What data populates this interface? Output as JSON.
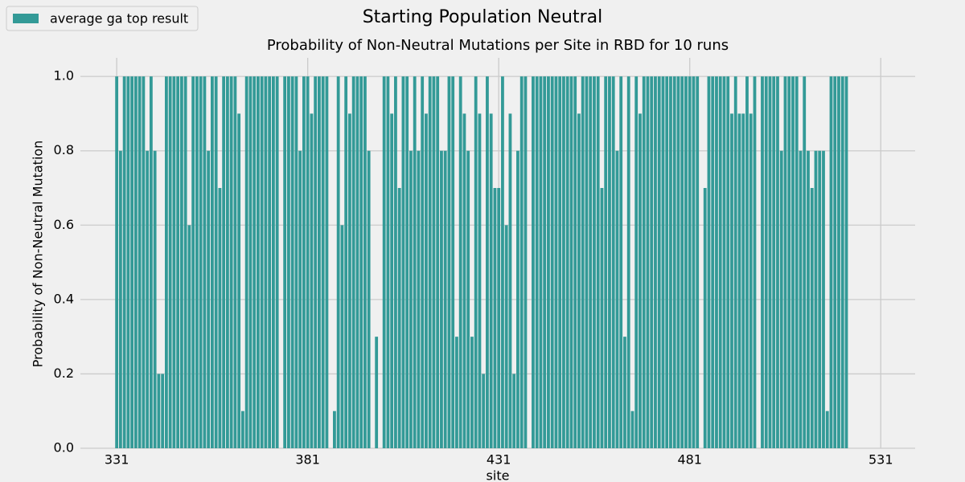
{
  "chart_data": {
    "type": "bar",
    "title": "Starting Population Neutral",
    "subtitle": "Probability of Non-Neutral Mutations per Site in RBD for 10 runs",
    "x_label": "site",
    "y_label": "Probability of Non-Neutral Mutation",
    "legend_position": "upper-left",
    "grid": true,
    "series": [
      {
        "name": "average ga top result",
        "color": "#339a97",
        "values": [
          1,
          0.8,
          1,
          1,
          1,
          1,
          1,
          1,
          0.8,
          1,
          0.8,
          0.2,
          0.2,
          1,
          1,
          1,
          1,
          1,
          1,
          0.6,
          1,
          1,
          1,
          1,
          0.8,
          1,
          1,
          0.7,
          1,
          1,
          1,
          1,
          0.9,
          0.1,
          1,
          1,
          1,
          1,
          1,
          1,
          1,
          1,
          1,
          0,
          1,
          1,
          1,
          1,
          0.8,
          1,
          1,
          0.9,
          1,
          1,
          1,
          1,
          0,
          0.1,
          1,
          0.6,
          1,
          0.9,
          1,
          1,
          1,
          1,
          0.8,
          0,
          0.3,
          0,
          1,
          1,
          0.9,
          1,
          0.7,
          1,
          1,
          0.8,
          1,
          0.8,
          1,
          0.9,
          1,
          1,
          1,
          0.8,
          0.8,
          1,
          1,
          0.3,
          1,
          0.9,
          0.8,
          0.3,
          1,
          0.9,
          0.2,
          1,
          0.9,
          0.7,
          0.7,
          1,
          0.6,
          0.9,
          0.2,
          0.8,
          1,
          1,
          0,
          1,
          1,
          1,
          1,
          1,
          1,
          1,
          1,
          1,
          1,
          1,
          1,
          0.9,
          1,
          1,
          1,
          1,
          1,
          0.7,
          1,
          1,
          1,
          0.8,
          1,
          0.3,
          1,
          0.1,
          1,
          0.9,
          1,
          1,
          1,
          1,
          1,
          1,
          1,
          1,
          1,
          1,
          1,
          1,
          1,
          1,
          1,
          0,
          0.7,
          1,
          1,
          1,
          1,
          1,
          1,
          0.9,
          1,
          0.9,
          0.9,
          1,
          0.9,
          1,
          0,
          1,
          1,
          1,
          1,
          1,
          0.8,
          1,
          1,
          1,
          1,
          0.8,
          1,
          0.8,
          0.7,
          0.8,
          0.8,
          0.8,
          0.1,
          1,
          1,
          1,
          1,
          1
        ]
      }
    ],
    "x": [
      331,
      332,
      333,
      334,
      335,
      336,
      337,
      338,
      339,
      340,
      341,
      342,
      343,
      344,
      345,
      346,
      347,
      348,
      349,
      350,
      351,
      352,
      353,
      354,
      355,
      356,
      357,
      358,
      359,
      360,
      361,
      362,
      363,
      364,
      365,
      366,
      367,
      368,
      369,
      370,
      371,
      372,
      373,
      374,
      375,
      376,
      377,
      378,
      379,
      380,
      381,
      382,
      383,
      384,
      385,
      386,
      387,
      388,
      389,
      390,
      391,
      392,
      393,
      394,
      395,
      396,
      397,
      398,
      399,
      400,
      401,
      402,
      403,
      404,
      405,
      406,
      407,
      408,
      409,
      410,
      411,
      412,
      413,
      414,
      415,
      416,
      417,
      418,
      419,
      420,
      421,
      422,
      423,
      424,
      425,
      426,
      427,
      428,
      429,
      430,
      431,
      432,
      433,
      434,
      435,
      436,
      437,
      438,
      439,
      440,
      441,
      442,
      443,
      444,
      445,
      446,
      447,
      448,
      449,
      450,
      451,
      452,
      453,
      454,
      455,
      456,
      457,
      458,
      459,
      460,
      461,
      462,
      463,
      464,
      465,
      466,
      467,
      468,
      469,
      470,
      471,
      472,
      473,
      474,
      475,
      476,
      477,
      478,
      479,
      480,
      481,
      482,
      483,
      484,
      485,
      486,
      487,
      488,
      489,
      490,
      491,
      492,
      493,
      494,
      495,
      496,
      497,
      498,
      499,
      500,
      501,
      502,
      503,
      504,
      505,
      506,
      507,
      508,
      509,
      510,
      511,
      512,
      513,
      514,
      515,
      516,
      517,
      518,
      519,
      520,
      521,
      522
    ],
    "xlim": [
      321.5,
      540
    ],
    "xticks": [
      331,
      381,
      431,
      481,
      531
    ],
    "ylim": [
      0,
      1.05
    ],
    "yticks": [
      {
        "value": 0,
        "label": "0.0"
      },
      {
        "value": 0.2,
        "label": "0.2"
      },
      {
        "value": 0.4,
        "label": "0.4"
      },
      {
        "value": 0.6,
        "label": "0.6"
      },
      {
        "value": 0.8,
        "label": "0.8"
      },
      {
        "value": 1,
        "label": "1.0"
      }
    ]
  }
}
